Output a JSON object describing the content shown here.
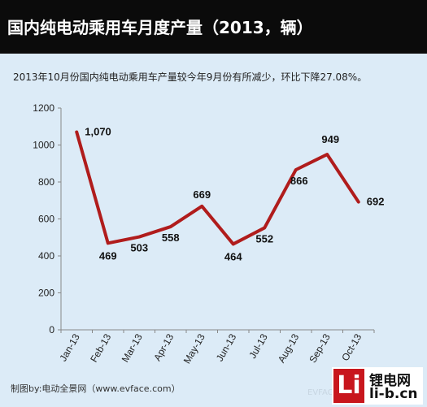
{
  "header": {
    "title": "国内纯电动乘用车月度产量（2013，辆）"
  },
  "subtitle": "2013年10月份国内纯电动乘用车产量较今年9月份有所减少，环比下降27.08%。",
  "footer": "制图by:电动全景网（www.evface.com）",
  "watermark": "EVFACE",
  "logo": {
    "mark": "Li",
    "top": "锂电网",
    "bottom": "li-b.cn"
  },
  "colors": {
    "title_bg": "#0b0b0b",
    "background": "#dcebf7",
    "line": "#b01c1c",
    "logo_red": "#c8161d"
  },
  "chart_data": {
    "type": "line",
    "categories": [
      "Jan-13",
      "Feb-13",
      "Mar-13",
      "Apr-13",
      "May-13",
      "Jun-13",
      "Jul-13",
      "Aug-13",
      "Sep-13",
      "Oct-13"
    ],
    "values": [
      1070,
      469,
      503,
      558,
      669,
      464,
      552,
      866,
      949,
      692
    ],
    "data_labels": [
      "1,070",
      "469",
      "503",
      "558",
      "669",
      "464",
      "552",
      "866",
      "949",
      "692"
    ],
    "ylim": [
      0,
      1200
    ],
    "yticks": [
      0,
      200,
      400,
      600,
      800,
      1000,
      1200
    ],
    "grid": false,
    "legend": "none"
  }
}
